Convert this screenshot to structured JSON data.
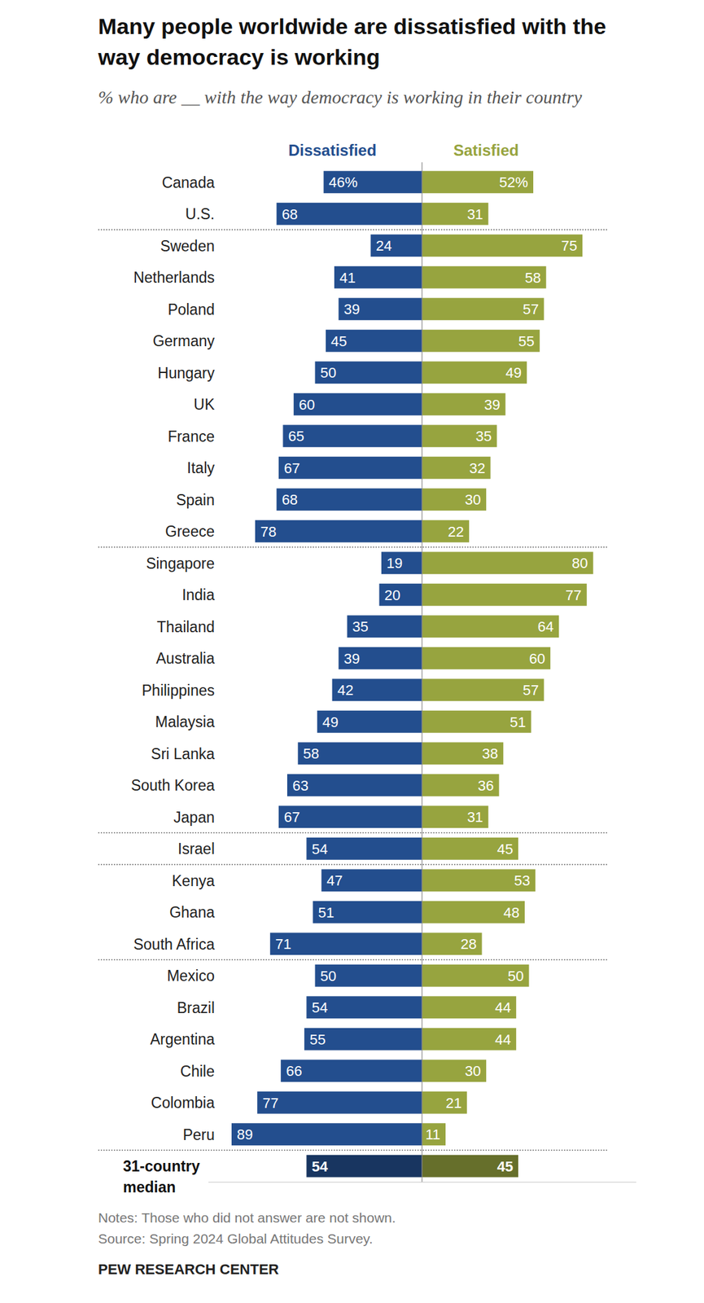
{
  "chart_data": {
    "type": "bar",
    "orientation": "horizontal",
    "title": "Many people worldwide are dissatisfied with the way democracy is working",
    "subtitle": "% who are __ with the way democracy is working in their country",
    "categories": [
      "Canada",
      "U.S.",
      "Sweden",
      "Netherlands",
      "Poland",
      "Germany",
      "Hungary",
      "UK",
      "France",
      "Italy",
      "Spain",
      "Greece",
      "Singapore",
      "India",
      "Thailand",
      "Australia",
      "Philippines",
      "Malaysia",
      "Sri Lanka",
      "South Korea",
      "Japan",
      "Israel",
      "Kenya",
      "Ghana",
      "South Africa",
      "Mexico",
      "Brazil",
      "Argentina",
      "Chile",
      "Colombia",
      "Peru",
      "31-country median"
    ],
    "series": [
      {
        "name": "Dissatisfied",
        "color": "#234e8e",
        "values": [
          46,
          68,
          24,
          41,
          39,
          45,
          50,
          60,
          65,
          67,
          68,
          78,
          19,
          20,
          35,
          39,
          42,
          49,
          58,
          63,
          67,
          54,
          47,
          51,
          71,
          50,
          54,
          55,
          66,
          77,
          89,
          54
        ],
        "value_labels": [
          "46%",
          "68",
          "24",
          "41",
          "39",
          "45",
          "50",
          "60",
          "65",
          "67",
          "68",
          "78",
          "19",
          "20",
          "35",
          "39",
          "42",
          "49",
          "58",
          "63",
          "67",
          "54",
          "47",
          "51",
          "71",
          "50",
          "54",
          "55",
          "66",
          "77",
          "89",
          "54"
        ]
      },
      {
        "name": "Satisfied",
        "color": "#97a43f",
        "values": [
          52,
          31,
          75,
          58,
          57,
          55,
          49,
          39,
          35,
          32,
          30,
          22,
          80,
          77,
          64,
          60,
          57,
          51,
          38,
          36,
          31,
          45,
          53,
          48,
          28,
          50,
          44,
          44,
          30,
          21,
          11,
          45
        ],
        "value_labels": [
          "52%",
          "31",
          "75",
          "58",
          "57",
          "55",
          "49",
          "39",
          "35",
          "32",
          "30",
          "22",
          "80",
          "77",
          "64",
          "60",
          "57",
          "51",
          "38",
          "36",
          "31",
          "45",
          "53",
          "48",
          "28",
          "50",
          "44",
          "44",
          "30",
          "21",
          "11",
          "45"
        ]
      }
    ],
    "xlim": [
      0,
      100
    ],
    "xticks": [
      0
    ],
    "tick_labels": false,
    "data_labels": true,
    "notes": "Notes: Those who did not answer are not shown.",
    "source": "Source: Spring 2024 Global Attitudes Survey.",
    "credit": "PEW RESEARCH CENTER"
  }
}
